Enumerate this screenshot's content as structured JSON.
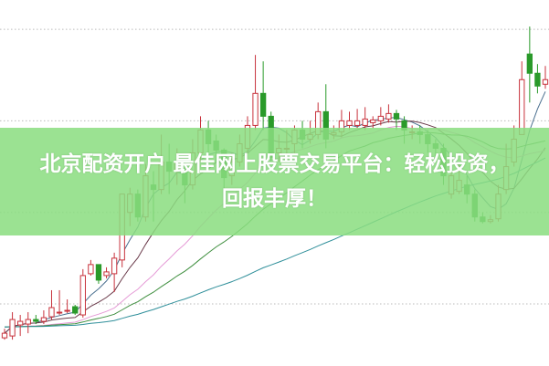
{
  "banner": {
    "line1": "北京配资开户 最佳网上股票交易平台：轻松投资，",
    "line2": "回报丰厚！",
    "color": "#8add80"
  },
  "chart_data": {
    "type": "candlestick",
    "title": "",
    "grid": true,
    "up_color": "#c8323c",
    "down_color": "#2a9a2a",
    "ma_colors": [
      "#4a6f8f",
      "#6a3a4a",
      "#e59ad6",
      "#3f8f3f",
      "#2f8f9a"
    ],
    "ma_periods": [
      5,
      10,
      20,
      30,
      60
    ],
    "ylim": [
      9.3,
      13.1
    ],
    "gridlines": [
      10,
      11,
      12,
      13
    ],
    "candles": [
      [
        9.63,
        9.68,
        9.73,
        9.61
      ],
      [
        9.65,
        9.83,
        9.91,
        9.61
      ],
      [
        9.77,
        9.81,
        9.88,
        9.65
      ],
      [
        9.78,
        9.83,
        9.91,
        9.68
      ],
      [
        9.83,
        9.81,
        9.88,
        9.78
      ],
      [
        9.81,
        9.85,
        9.93,
        9.78
      ],
      [
        9.86,
        9.96,
        10.15,
        9.83
      ],
      [
        9.91,
        9.91,
        10.15,
        9.88
      ],
      [
        9.93,
        9.93,
        10.05,
        9.9
      ],
      [
        9.97,
        9.9,
        9.99,
        9.88
      ],
      [
        9.88,
        10.31,
        10.38,
        9.85
      ],
      [
        10.33,
        10.43,
        10.48,
        10.31
      ],
      [
        10.43,
        10.26,
        10.43,
        10.22
      ],
      [
        10.31,
        10.35,
        10.4,
        10.28
      ],
      [
        10.33,
        10.5,
        10.56,
        10.13
      ],
      [
        10.48,
        11.2,
        11.2,
        10.4
      ],
      [
        11.0,
        11.2,
        11.27,
        10.85
      ],
      [
        11.2,
        10.95,
        11.25,
        10.9
      ],
      [
        10.95,
        11.4,
        11.53,
        10.9
      ],
      [
        11.3,
        11.25,
        11.45,
        10.9
      ],
      [
        11.25,
        11.55,
        11.85,
        11.2
      ],
      [
        11.55,
        11.45,
        11.75,
        11.2
      ],
      [
        11.45,
        11.55,
        11.7,
        11.3
      ],
      [
        11.45,
        11.3,
        11.55,
        11.1
      ],
      [
        11.3,
        11.65,
        11.8,
        11.25
      ],
      [
        11.65,
        11.9,
        12.05,
        11.55
      ],
      [
        11.9,
        11.75,
        12.0,
        11.5
      ],
      [
        11.78,
        11.68,
        11.85,
        11.55
      ],
      [
        11.68,
        11.38,
        11.7,
        11.2
      ],
      [
        11.4,
        11.55,
        11.65,
        11.3
      ],
      [
        11.55,
        11.75,
        11.85,
        11.5
      ],
      [
        11.7,
        11.95,
        12.05,
        11.65
      ],
      [
        11.95,
        12.3,
        12.72,
        11.9
      ],
      [
        12.3,
        12.05,
        12.65,
        11.9
      ],
      [
        12.05,
        11.6,
        12.1,
        11.55
      ],
      [
        11.65,
        11.7,
        11.85,
        11.55
      ],
      [
        11.7,
        11.7,
        11.9,
        11.58
      ],
      [
        11.75,
        11.9,
        11.95,
        11.65
      ],
      [
        11.9,
        11.8,
        12.0,
        11.7
      ],
      [
        11.8,
        11.85,
        12.0,
        11.75
      ],
      [
        11.85,
        12.1,
        12.2,
        11.8
      ],
      [
        12.1,
        11.8,
        12.4,
        11.7
      ],
      [
        11.85,
        11.87,
        11.95,
        11.8
      ],
      [
        11.88,
        12.0,
        12.12,
        11.82
      ],
      [
        11.95,
        12.0,
        12.1,
        11.9
      ],
      [
        11.95,
        12.0,
        12.13,
        11.92
      ],
      [
        11.95,
        12.02,
        12.15,
        11.9
      ],
      [
        11.98,
        12.01,
        12.05,
        11.92
      ],
      [
        12.0,
        12.05,
        12.15,
        11.95
      ],
      [
        12.02,
        12.08,
        12.18,
        11.98
      ],
      [
        12.08,
        12.02,
        12.12,
        11.9
      ],
      [
        12.0,
        11.9,
        12.05,
        11.75
      ],
      [
        11.88,
        11.88,
        11.95,
        11.8
      ],
      [
        11.88,
        11.85,
        11.95,
        11.75
      ],
      [
        11.85,
        11.75,
        11.9,
        11.65
      ],
      [
        11.75,
        11.7,
        11.8,
        11.6
      ],
      [
        11.7,
        11.4,
        11.75,
        11.3
      ],
      [
        11.2,
        11.4,
        11.45,
        11.15
      ],
      [
        11.23,
        11.35,
        11.55,
        11.2
      ],
      [
        11.3,
        11.2,
        11.4,
        11.1
      ],
      [
        11.2,
        10.95,
        11.25,
        10.9
      ],
      [
        10.95,
        10.9,
        11.0,
        10.88
      ],
      [
        10.9,
        10.92,
        10.97,
        10.88
      ],
      [
        10.93,
        11.2,
        11.3,
        10.9
      ],
      [
        11.25,
        11.5,
        11.75,
        11.2
      ],
      [
        11.55,
        11.8,
        11.95,
        11.5
      ],
      [
        11.85,
        12.45,
        12.65,
        11.85
      ],
      [
        12.73,
        12.52,
        13.03,
        12.2
      ],
      [
        12.52,
        12.38,
        12.62,
        12.3
      ],
      [
        12.4,
        12.45,
        12.6,
        12.35
      ]
    ]
  }
}
